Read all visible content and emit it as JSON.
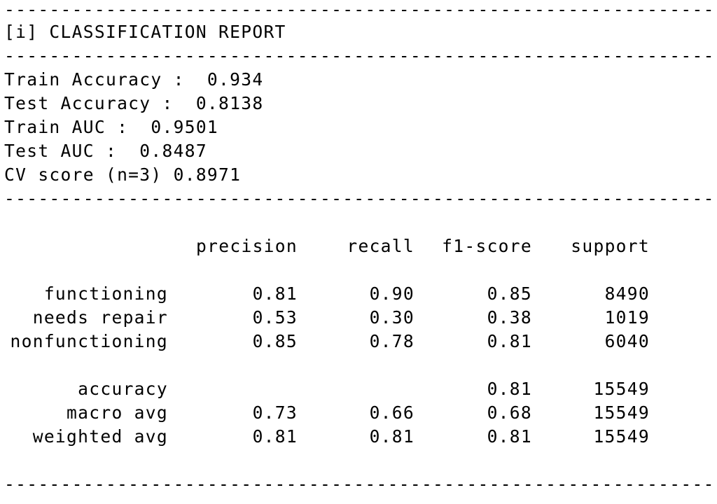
{
  "divider": "--------------------------------------------------------------------------------------------------------",
  "title": "[i] CLASSIFICATION REPORT",
  "metrics": [
    "Train Accuracy :  0.934",
    "Test Accuracy :  0.8138",
    "Train AUC :  0.9501",
    "Test AUC :  0.8487",
    "CV score (n=3) 0.8971"
  ],
  "report": {
    "headers": [
      "precision",
      "recall",
      "f1-score",
      "support"
    ],
    "class_rows": [
      {
        "label": "functioning",
        "precision": "0.81",
        "recall": "0.90",
        "f1": "0.85",
        "support": "8490"
      },
      {
        "label": "needs repair",
        "precision": "0.53",
        "recall": "0.30",
        "f1": "0.38",
        "support": "1019"
      },
      {
        "label": "nonfunctioning",
        "precision": "0.85",
        "recall": "0.78",
        "f1": "0.81",
        "support": "6040"
      }
    ],
    "summary_rows": [
      {
        "label": "accuracy",
        "precision": "",
        "recall": "",
        "f1": "0.81",
        "support": "15549"
      },
      {
        "label": "macro avg",
        "precision": "0.73",
        "recall": "0.66",
        "f1": "0.68",
        "support": "15549"
      },
      {
        "label": "weighted avg",
        "precision": "0.81",
        "recall": "0.81",
        "f1": "0.81",
        "support": "15549"
      }
    ]
  }
}
